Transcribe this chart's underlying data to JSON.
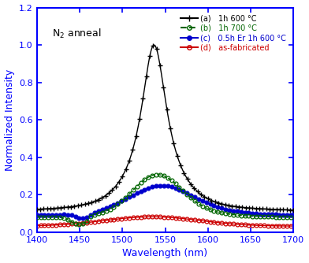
{
  "xlim": [
    1400,
    1700
  ],
  "ylim": [
    0,
    1.2
  ],
  "xlabel": "Wavelength (nm)",
  "ylabel": "Normalized Intensity",
  "annotation": "N₂ anneal",
  "xticks": [
    1400,
    1450,
    1500,
    1550,
    1600,
    1650,
    1700
  ],
  "yticks": [
    0.0,
    0.2,
    0.4,
    0.6,
    0.8,
    1.0,
    1.2
  ],
  "spine_color": "#0000ff",
  "tick_color": "#0000ff",
  "label_color": "#0000ff",
  "curve_a": {
    "color": "#000000",
    "label_prefix": "(a)",
    "label_desc": "  1h 600 °C"
  },
  "curve_b": {
    "color": "#006400",
    "label_prefix": "(b)",
    "label_desc": "  1h 700 °C"
  },
  "curve_c": {
    "color": "#0000cd",
    "label_prefix": "(c)",
    "label_desc": "  0.5h Er 1h 600 °C"
  },
  "curve_d": {
    "color": "#cc0000",
    "label_prefix": "(d)",
    "label_desc": "  as-fabricated"
  }
}
